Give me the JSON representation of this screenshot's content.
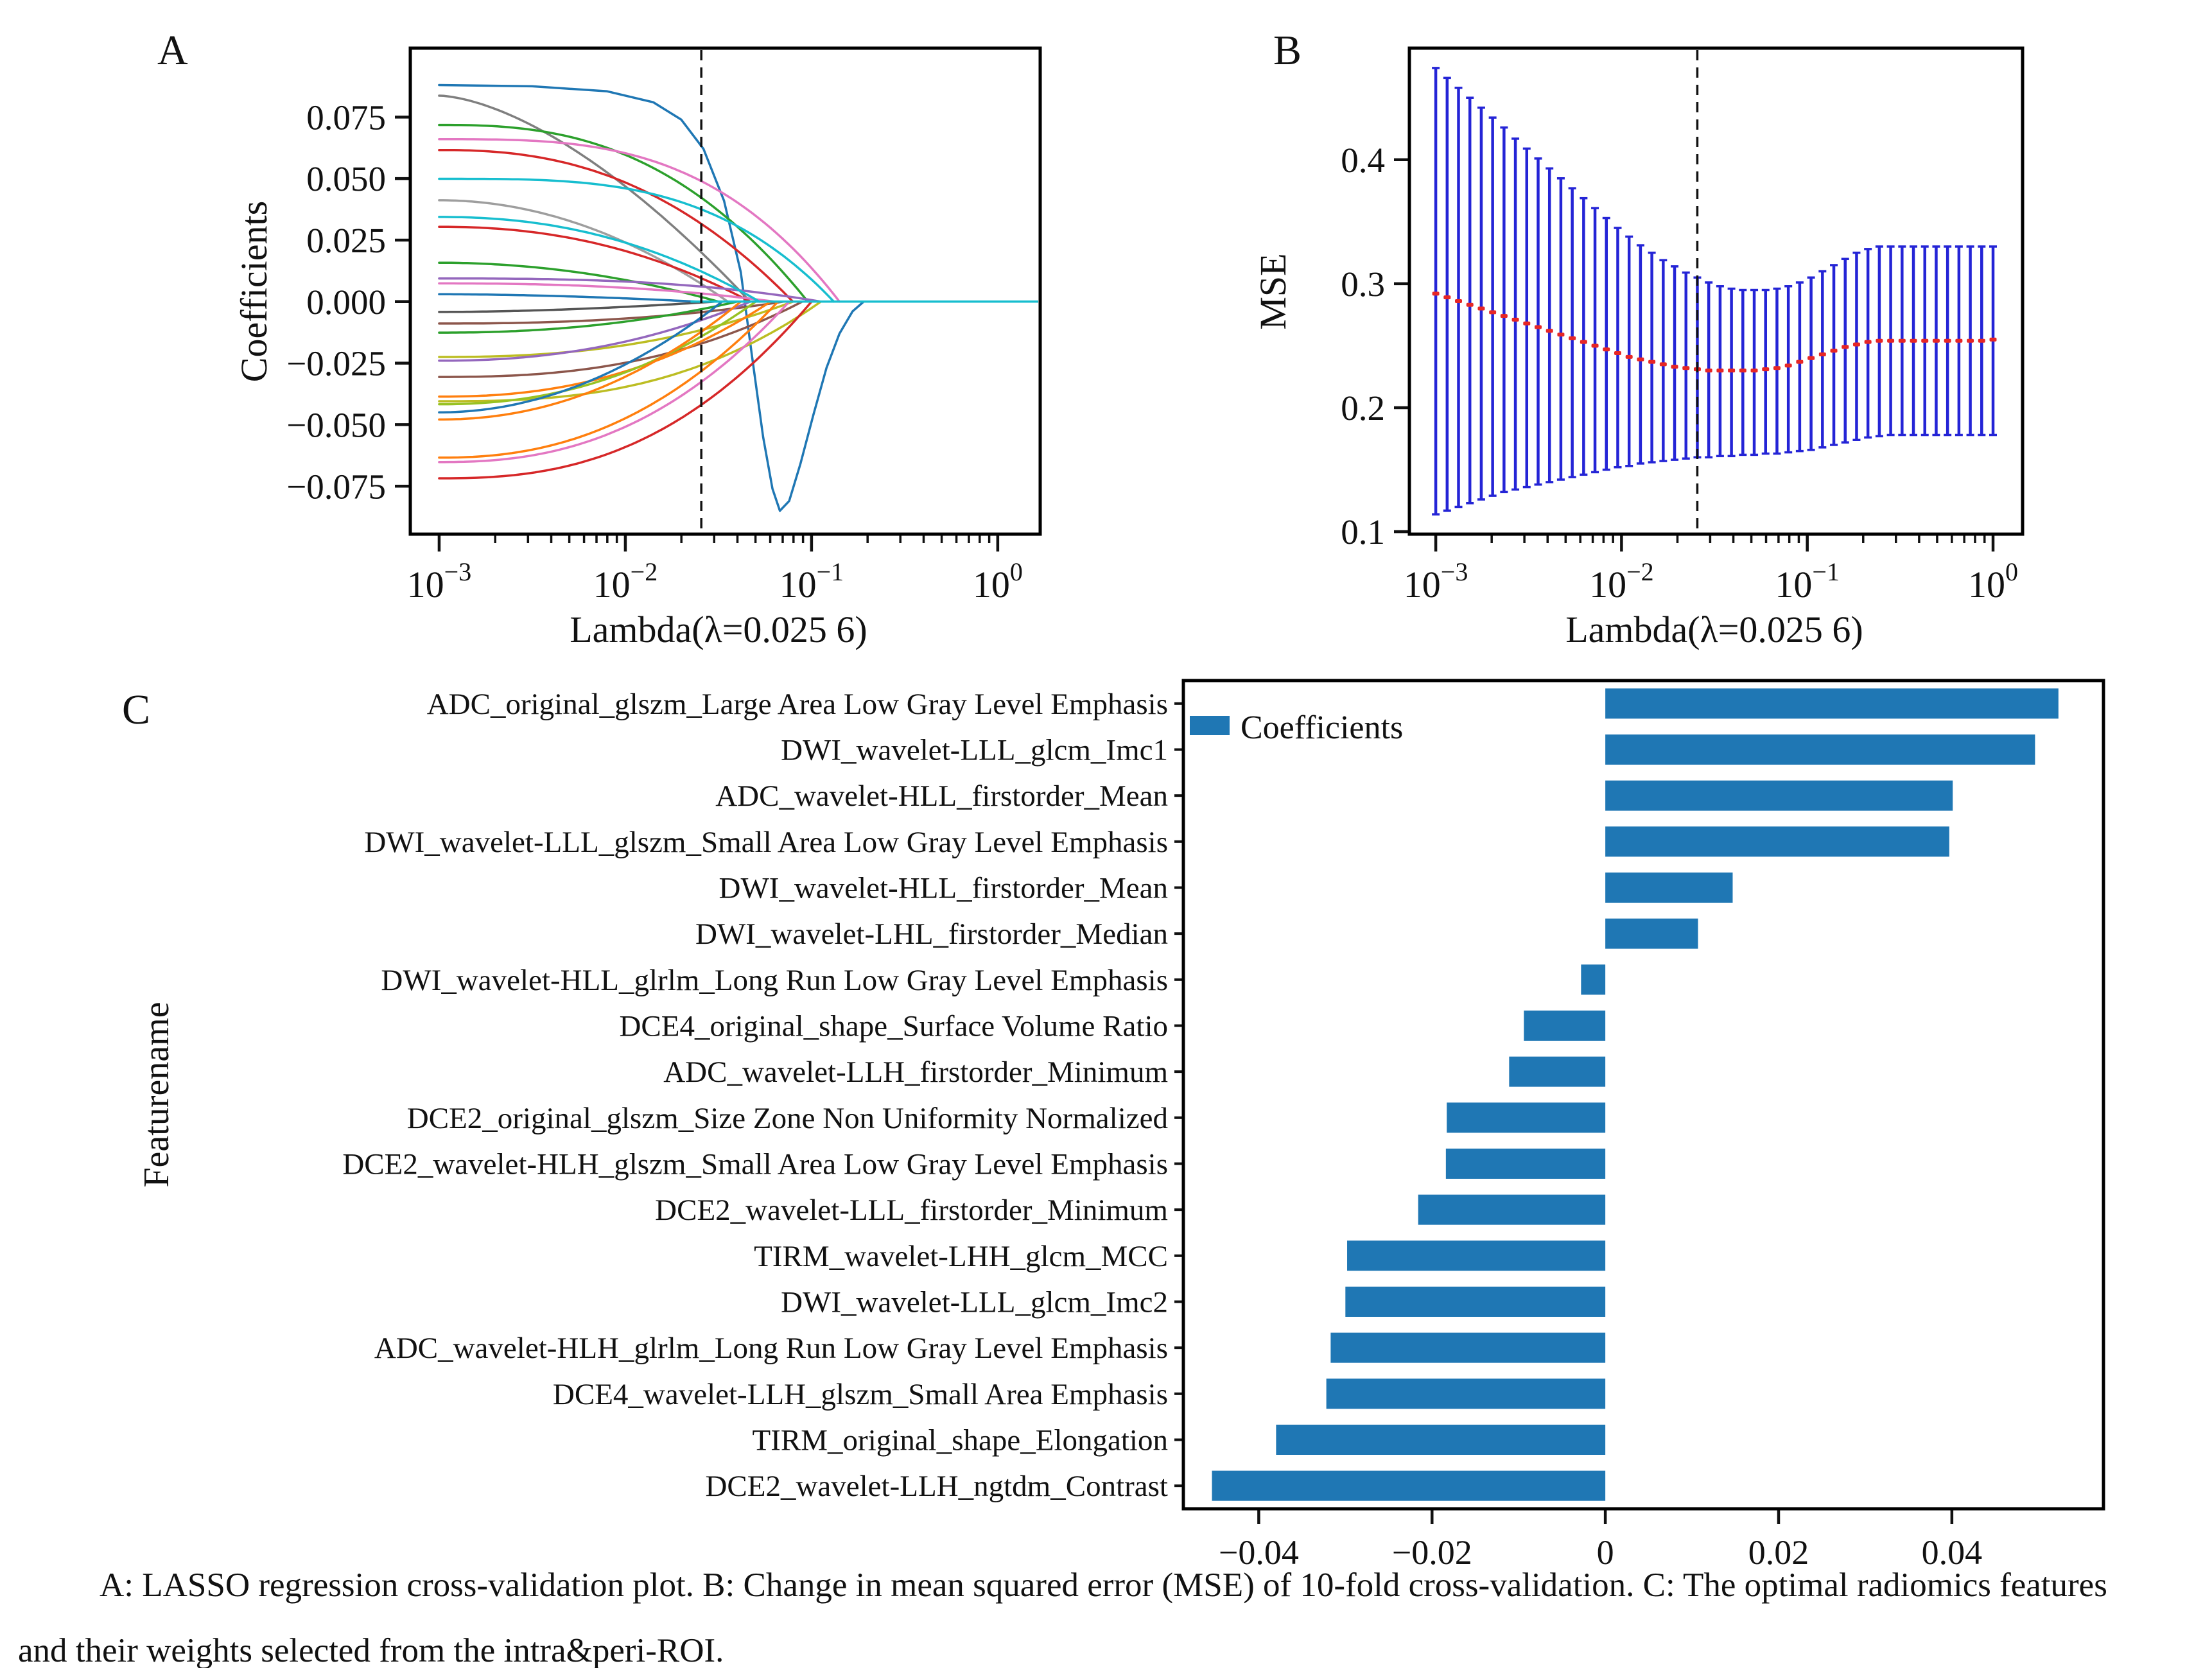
{
  "caption": {
    "line1": "A: LASSO regression cross-validation plot. B: Change in mean squared error (MSE) of 10-fold cross-validation. C: The optimal radiomics features",
    "line2": "and their weights selected from the intra&peri-ROI."
  },
  "chart_data": [
    {
      "id": "panel-a",
      "letter": "A",
      "type": "line",
      "title": "",
      "xlabel": "Lambda(λ=0.025 6)",
      "ylabel": "Coefficients",
      "x_scale": "log10",
      "xlim": [
        -3.155,
        0.228
      ],
      "ylim": [
        -0.0945,
        0.103
      ],
      "grid": false,
      "vline": -1.592,
      "x_ticks": [
        {
          "v": -3,
          "base": "10",
          "exp": "−3"
        },
        {
          "v": -2,
          "base": "10",
          "exp": "−2"
        },
        {
          "v": -1,
          "base": "10",
          "exp": "−1"
        },
        {
          "v": 0,
          "base": "10",
          "exp": "0"
        }
      ],
      "y_ticks": [
        {
          "v": 0.075,
          "label": "0.075"
        },
        {
          "v": 0.05,
          "label": "0.050"
        },
        {
          "v": 0.025,
          "label": "0.025"
        },
        {
          "v": 0.0,
          "label": "0.000"
        },
        {
          "v": -0.025,
          "label": "−0.025"
        },
        {
          "v": -0.05,
          "label": "−0.050"
        },
        {
          "v": -0.075,
          "label": "−0.075"
        }
      ],
      "zero_tail": {
        "color": "#17becf",
        "from": -1.65
      },
      "series": [
        {
          "color": "#1f77b4",
          "start": 0.088,
          "zero": -0.72,
          "p": 4,
          "dip": [
            [
              -3,
              0.088
            ],
            [
              -2.5,
              0.0875
            ],
            [
              -2.1,
              0.0855
            ],
            [
              -1.85,
              0.081
            ],
            [
              -1.7,
              0.074
            ],
            [
              -1.58,
              0.062
            ],
            [
              -1.47,
              0.041
            ],
            [
              -1.38,
              0.012
            ],
            [
              -1.32,
              -0.022
            ],
            [
              -1.26,
              -0.055
            ],
            [
              -1.21,
              -0.076
            ],
            [
              -1.17,
              -0.085
            ],
            [
              -1.12,
              -0.081
            ],
            [
              -1.06,
              -0.066
            ],
            [
              -0.99,
              -0.046
            ],
            [
              -0.92,
              -0.027
            ],
            [
              -0.85,
              -0.013
            ],
            [
              -0.78,
              -0.004
            ],
            [
              -0.72,
              0
            ]
          ]
        },
        {
          "color": "#7f7f7f",
          "start": 0.0837,
          "zero": -1.33,
          "p": 1.6
        },
        {
          "color": "#2ca02c",
          "start": 0.0718,
          "zero": -1.02,
          "p": 2.6
        },
        {
          "color": "#e377c2",
          "start": 0.066,
          "zero": -0.85,
          "p": 3.2
        },
        {
          "color": "#d62728",
          "start": 0.0616,
          "zero": -1.1,
          "p": 2.4
        },
        {
          "color": "#9e9e9e",
          "start": 0.0412,
          "zero": -1.45,
          "p": 2.0
        },
        {
          "color": "#d62728",
          "start": 0.0304,
          "zero": -1.33,
          "p": 2.2
        },
        {
          "color": "#2ca02c",
          "start": 0.0158,
          "zero": -1.5,
          "p": 2.0
        },
        {
          "color": "#9467bd",
          "start": 0.0094,
          "zero": -0.95,
          "p": 2.8
        },
        {
          "color": "#e377c2",
          "start": 0.0074,
          "zero": -1.2,
          "p": 2.4
        },
        {
          "color": "#1f77b4",
          "start": 0.003,
          "zero": -1.62,
          "p": 1.8
        },
        {
          "color": "#555555",
          "start": -0.0042,
          "zero": -1.52,
          "p": 1.8
        },
        {
          "color": "#8c564b",
          "start": -0.0089,
          "zero": -1.15,
          "p": 2.4
        },
        {
          "color": "#2ca02c",
          "start": -0.0126,
          "zero": -1.4,
          "p": 2.2
        },
        {
          "color": "#bcbd22",
          "start": -0.0225,
          "zero": -1.1,
          "p": 2.4
        },
        {
          "color": "#9467bd",
          "start": -0.024,
          "zero": -1.33,
          "p": 2.2
        },
        {
          "color": "#8c564b",
          "start": -0.0306,
          "zero": -1.05,
          "p": 2.5
        },
        {
          "color": "#ff7f0e",
          "start": -0.0386,
          "zero": -1.22,
          "p": 2.3
        },
        {
          "color": "#bcbd22",
          "start": -0.0405,
          "zero": -0.95,
          "p": 2.7
        },
        {
          "color": "#98c222",
          "start": -0.0417,
          "zero": -1.3,
          "p": 2.2
        },
        {
          "color": "#1f77b4",
          "start": -0.045,
          "zero": -1.48,
          "p": 2.0
        },
        {
          "color": "#ff7f0e",
          "start": -0.0479,
          "zero": -1.38,
          "p": 2.1
        },
        {
          "color": "#ff7f0e",
          "start": -0.0634,
          "zero": -1.18,
          "p": 2.3
        },
        {
          "color": "#e377c2",
          "start": -0.0652,
          "zero": -1.12,
          "p": 2.4
        },
        {
          "color": "#d62728",
          "start": -0.0718,
          "zero": -1.0,
          "p": 2.5
        },
        {
          "color": "#17becf",
          "start": 0.0499,
          "zero": -0.88,
          "p": 3.4
        },
        {
          "color": "#17becf",
          "start": 0.0344,
          "zero": -1.28,
          "p": 2.2
        }
      ]
    },
    {
      "id": "panel-b",
      "letter": "B",
      "type": "errorbar",
      "title": "",
      "xlabel": "Lambda(λ=0.025 6)",
      "ylabel": "MSE",
      "x_scale": "log10",
      "xlim": [
        -3.142,
        0.159
      ],
      "ylim": [
        0.098,
        0.49
      ],
      "grid": false,
      "vline": -1.592,
      "bar_color": "#2424d6",
      "mean_color": "#e62626",
      "x_ticks": [
        {
          "v": -3,
          "base": "10",
          "exp": "−3"
        },
        {
          "v": -2,
          "base": "10",
          "exp": "−2"
        },
        {
          "v": -1,
          "base": "10",
          "exp": "−1"
        },
        {
          "v": 0,
          "base": "10",
          "exp": "0"
        }
      ],
      "y_ticks": [
        {
          "v": 0.4,
          "label": "0.4"
        },
        {
          "v": 0.3,
          "label": "0.3"
        },
        {
          "v": 0.2,
          "label": "0.2"
        },
        {
          "v": 0.1,
          "label": "0.1"
        }
      ],
      "log10_x_range": [
        -3,
        0
      ],
      "n_points": 50,
      "mean": [
        0.292,
        0.289,
        0.286,
        0.283,
        0.28,
        0.277,
        0.274,
        0.271,
        0.268,
        0.265,
        0.262,
        0.259,
        0.256,
        0.253,
        0.25,
        0.247,
        0.244,
        0.241,
        0.239,
        0.237,
        0.235,
        0.233,
        0.232,
        0.231,
        0.23,
        0.23,
        0.23,
        0.23,
        0.23,
        0.231,
        0.232,
        0.234,
        0.237,
        0.24,
        0.243,
        0.246,
        0.249,
        0.251,
        0.253,
        0.254,
        0.254,
        0.254,
        0.254,
        0.254,
        0.254,
        0.254,
        0.254,
        0.254,
        0.254,
        0.255
      ],
      "upper": [
        0.474,
        0.466,
        0.458,
        0.45,
        0.442,
        0.434,
        0.426,
        0.417,
        0.409,
        0.401,
        0.393,
        0.385,
        0.377,
        0.369,
        0.361,
        0.353,
        0.345,
        0.338,
        0.331,
        0.325,
        0.319,
        0.314,
        0.309,
        0.305,
        0.301,
        0.298,
        0.296,
        0.295,
        0.295,
        0.295,
        0.296,
        0.298,
        0.301,
        0.305,
        0.31,
        0.315,
        0.32,
        0.325,
        0.328,
        0.33,
        0.33,
        0.33,
        0.33,
        0.33,
        0.33,
        0.33,
        0.33,
        0.33,
        0.33,
        0.33
      ],
      "lower": [
        0.114,
        0.117,
        0.12,
        0.123,
        0.126,
        0.129,
        0.132,
        0.134,
        0.136,
        0.138,
        0.14,
        0.142,
        0.144,
        0.146,
        0.148,
        0.15,
        0.152,
        0.153,
        0.155,
        0.156,
        0.157,
        0.158,
        0.159,
        0.16,
        0.16,
        0.161,
        0.161,
        0.162,
        0.162,
        0.163,
        0.163,
        0.164,
        0.165,
        0.166,
        0.168,
        0.17,
        0.172,
        0.174,
        0.176,
        0.177,
        0.178,
        0.178,
        0.178,
        0.178,
        0.178,
        0.178,
        0.178,
        0.178,
        0.178,
        0.178
      ]
    },
    {
      "id": "panel-c",
      "letter": "C",
      "type": "bar",
      "orientation": "horizontal",
      "title": "",
      "xlabel": "",
      "ylabel": "Featurename",
      "legend_label": "Coefficients",
      "legend_position": "upper-left",
      "bar_color": "#1f77b4",
      "xlim": [
        -0.0487,
        0.0575
      ],
      "grid": false,
      "x_ticks": [
        {
          "v": -0.04,
          "label": "−0.04"
        },
        {
          "v": -0.02,
          "label": "−0.02"
        },
        {
          "v": 0,
          "label": "0"
        },
        {
          "v": 0.02,
          "label": "0.02"
        },
        {
          "v": 0.04,
          "label": "0.04"
        }
      ],
      "categories": [
        "ADC_original_glszm_Large Area Low Gray Level Emphasis",
        "DWI_wavelet-LLL_glcm_Imc1",
        "ADC_wavelet-HLL_firstorder_Mean",
        "DWI_wavelet-LLL_glszm_Small Area Low Gray Level Emphasis",
        "DWI_wavelet-HLL_firstorder_Mean",
        "DWI_wavelet-LHL_firstorder_Median",
        "DWI_wavelet-HLL_glrlm_Long Run Low Gray Level Emphasis",
        "DCE4_original_shape_Surface Volume Ratio",
        "ADC_wavelet-LLH_firstorder_Minimum",
        "DCE2_original_glszm_Size Zone Non Uniformity Normalized",
        "DCE2_wavelet-HLH_glszm_Small Area Low Gray Level Emphasis",
        "DCE2_wavelet-LLL_firstorder_Minimum",
        "TIRM_wavelet-LHH_glcm_MCC",
        "DWI_wavelet-LLL_glcm_Imc2",
        "ADC_wavelet-HLH_glrlm_Long Run Low Gray Level Emphasis",
        "DCE4_wavelet-LLH_glszm_Small Area Emphasis",
        "TIRM_original_shape_Elongation",
        "DCE2_wavelet-LLH_ngtdm_Contrast"
      ],
      "values": [
        0.0523,
        0.0496,
        0.0401,
        0.0397,
        0.0147,
        0.0107,
        -0.0028,
        -0.0094,
        -0.0111,
        -0.0183,
        -0.0184,
        -0.0216,
        -0.0298,
        -0.03,
        -0.0317,
        -0.0322,
        -0.038,
        -0.0454
      ]
    }
  ]
}
